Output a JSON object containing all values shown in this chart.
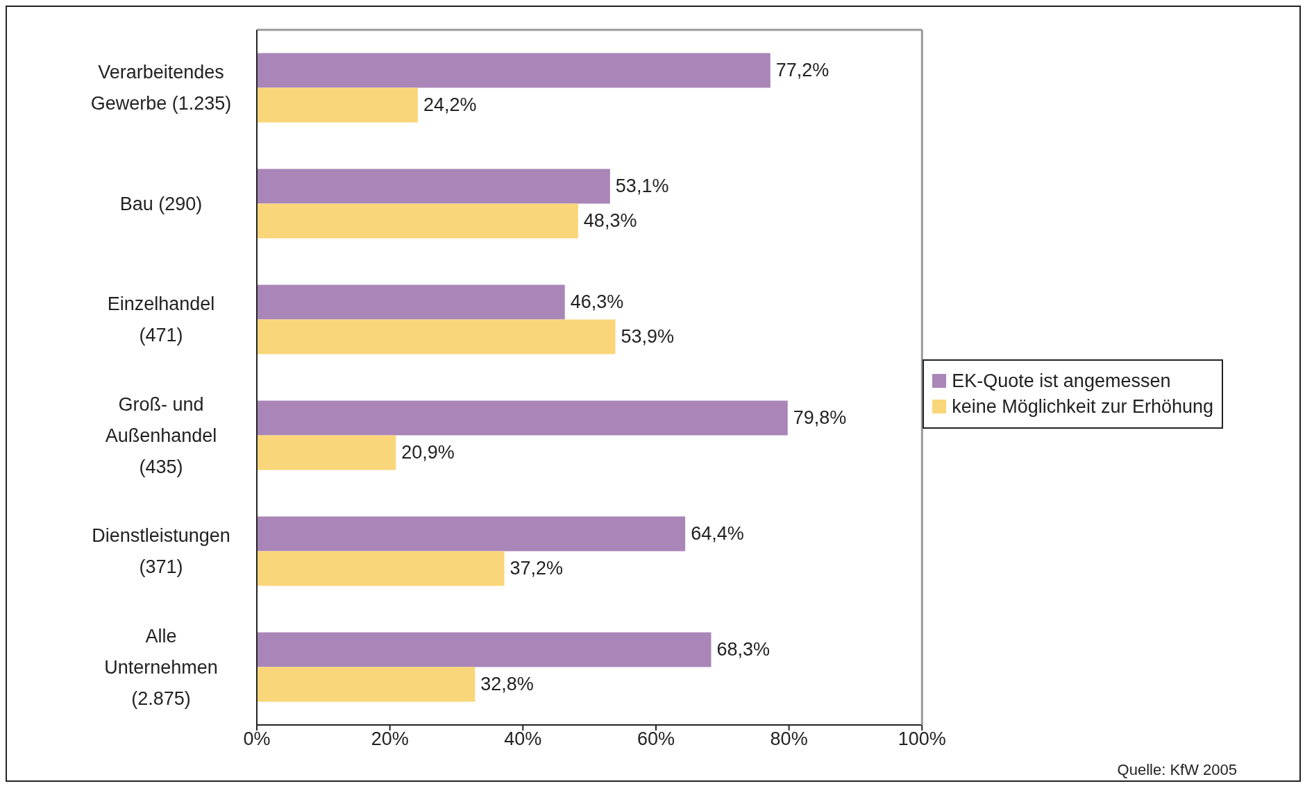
{
  "chart_data": {
    "type": "bar",
    "orientation": "horizontal",
    "categories": [
      "Verarbeitendes Gewerbe (1.235)",
      "Bau (290)",
      "Einzelhandel (471)",
      "Groß- und Außenhandel (435)",
      "Dienstleistungen (371)",
      "Alle Unternehmen (2.875)"
    ],
    "series": [
      {
        "name": "EK-Quote ist angemessen",
        "color": "#a985b8",
        "values": [
          77.2,
          53.1,
          46.3,
          79.8,
          64.4,
          68.3
        ],
        "value_labels": [
          "77,2%",
          "53,1%",
          "46,3%",
          "79,8%",
          "64,4%",
          "68,3%"
        ]
      },
      {
        "name": "keine Möglichkeit zur Erhöhung",
        "color": "#fad67a",
        "values": [
          24.2,
          48.3,
          53.9,
          20.9,
          37.2,
          32.8
        ],
        "value_labels": [
          "24,2%",
          "48,3%",
          "53,9%",
          "20,9%",
          "37,2%",
          "32,8%"
        ]
      }
    ],
    "xlim": [
      0,
      100
    ],
    "xticks": [
      {
        "value": 0,
        "label": "0%"
      },
      {
        "value": 20,
        "label": "20%"
      },
      {
        "value": 40,
        "label": "40%"
      },
      {
        "value": 60,
        "label": "60%"
      },
      {
        "value": 80,
        "label": "80%"
      },
      {
        "value": 100,
        "label": "100%"
      }
    ],
    "grid": false,
    "legend": "right",
    "annotations": [
      "Quelle: KfW 2005"
    ]
  }
}
